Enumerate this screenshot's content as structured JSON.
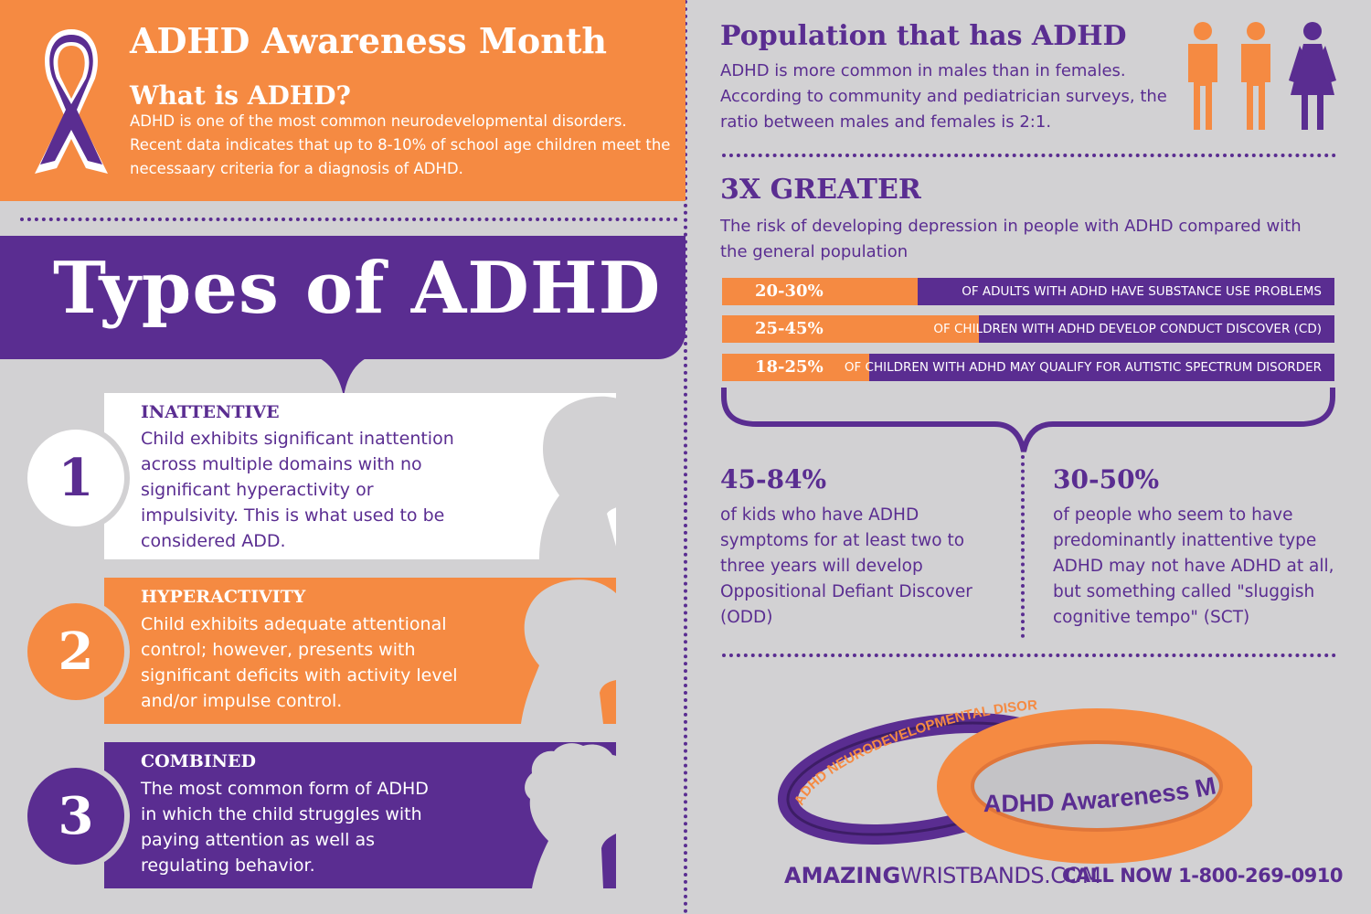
{
  "colors": {
    "orange": "#f58a42",
    "purple": "#5a2d91",
    "background": "#d2d1d3",
    "white": "#ffffff"
  },
  "header": {
    "title": "ADHD Awareness Month",
    "subtitle": "What is ADHD?",
    "body": "ADHD is one of the most common neurodevelopmental disorders. Recent data indicates that up to 8-10% of school age children meet the necessaary criteria for a diagnosis of ADHD.",
    "icon": "awareness-ribbon-icon"
  },
  "types": {
    "title": "Types of ADHD",
    "items": [
      {
        "number": "1",
        "name": "INATTENTIVE",
        "description": "Child exhibits significant inattention across multiple domains with no significant hyperactivity or impulsivity. This is what used to be considered ADD.",
        "icon": "child-cap-silhouette-icon"
      },
      {
        "number": "2",
        "name": "HYPERACTIVITY",
        "description": "Child exhibits adequate attentional control; however, presents with significant deficits with activity level and/or impulse control.",
        "icon": "child-silhouette-icon"
      },
      {
        "number": "3",
        "name": "COMBINED",
        "description": "The most common form of ADHD in which the child struggles with paying attention as well as regulating behavior.",
        "icon": "child-curly-hair-silhouette-icon"
      }
    ]
  },
  "population": {
    "title": "Population that has ADHD",
    "body": "ADHD is more common in males than in females. According to community and pediatrician surveys, the ratio between males and females is 2:1.",
    "icons": [
      "male-person-icon",
      "male-person-icon",
      "female-person-icon"
    ]
  },
  "depression": {
    "title": "3X GREATER",
    "body": "The risk of developing depression in people with ADHD compared with the general population"
  },
  "stat_bars": [
    {
      "value": "20-30%",
      "label": "OF ADULTS WITH ADHD HAVE SUBSTANCE USE PROBLEMS",
      "fill": 0.32
    },
    {
      "value": "25-45%",
      "label": "OF CHILDREN WITH ADHD DEVELOP CONDUCT DISCOVER (CD)",
      "fill": 0.42
    },
    {
      "value": "18-25%",
      "label": "OF CHILDREN WITH ADHD MAY QUALIFY FOR AUTISTIC SPECTRUM DISORDER",
      "fill": 0.24
    }
  ],
  "stats": [
    {
      "value": "45-84%",
      "text": "of kids who have ADHD symptoms for at least two to three years will develop Oppositional Defiant Discover (ODD)"
    },
    {
      "value": "30-50%",
      "text": "of people who seem to have predominantly inattentive type ADHD may not have ADHD at all, but something called \"sluggish cognitive tempo\" (SCT)"
    }
  ],
  "wristbands": {
    "band1_text": "ADHD NEURODEVELOPMENTAL DISORDERS",
    "band2_text": "ADHD Awareness Month"
  },
  "footer": {
    "brand_bold": "AMAZING",
    "brand_light": "WRISTBANDS.COM",
    "call": "CALL NOW 1-800-269-0910"
  }
}
